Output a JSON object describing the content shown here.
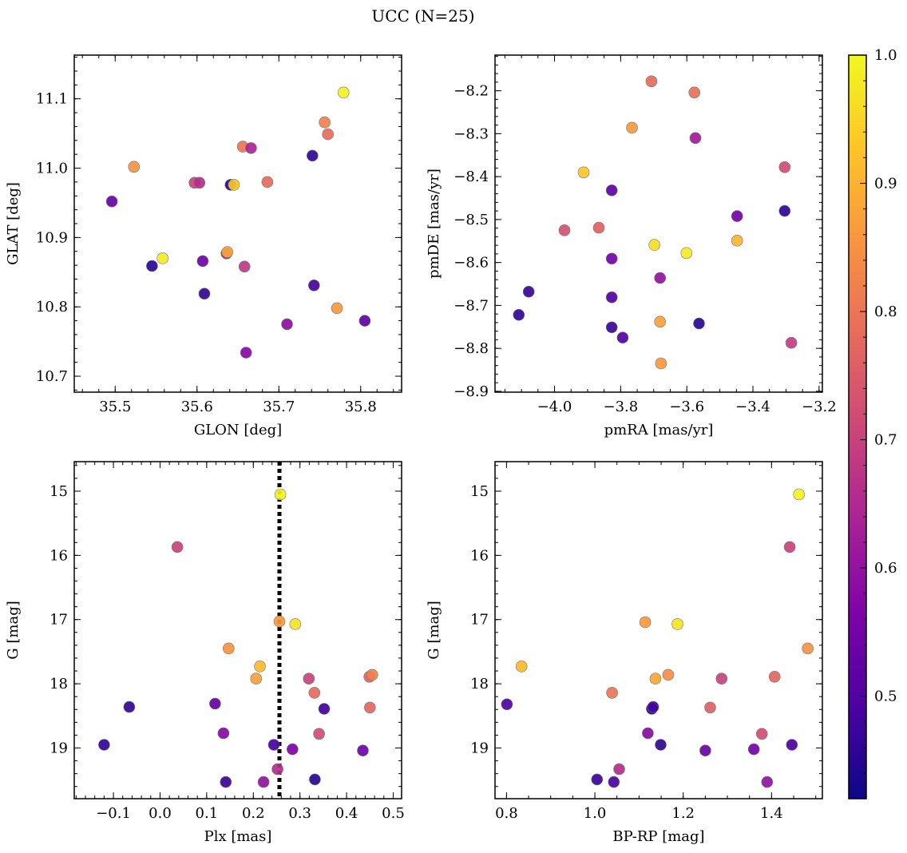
{
  "title": "UCC (N=25)",
  "colorbar": {
    "min": 0.42,
    "max": 1.0,
    "ticks": [
      0.5,
      0.6,
      0.7,
      0.8,
      0.9,
      1.0
    ],
    "tick_labels": [
      "0.5",
      "0.6",
      "0.7",
      "0.8",
      "0.9",
      "1.0"
    ],
    "colormap": "plasma"
  },
  "chart_data": [
    {
      "type": "scatter",
      "xlabel": "GLON [deg]",
      "ylabel": "GLAT [deg]",
      "xlim": [
        35.45,
        35.85
      ],
      "ylim": [
        10.677,
        11.163
      ],
      "invert_y": false,
      "xticks": [
        35.5,
        35.6,
        35.7,
        35.8
      ],
      "xtick_labels": [
        "35.5",
        "35.6",
        "35.7",
        "35.8"
      ],
      "yticks": [
        10.7,
        10.8,
        10.9,
        11.0,
        11.1
      ],
      "ytick_labels": [
        "10.7",
        "10.8",
        "10.9",
        "11.0",
        "11.1"
      ],
      "minor_x": 0.02,
      "minor_y": 0.02,
      "points": [
        {
          "x": 35.496,
          "y": 10.952,
          "c": 0.53
        },
        {
          "x": 35.523,
          "y": 11.002,
          "c": 0.85
        },
        {
          "x": 35.545,
          "y": 10.859,
          "c": 0.45
        },
        {
          "x": 35.558,
          "y": 10.87,
          "c": 0.98
        },
        {
          "x": 35.597,
          "y": 10.979,
          "c": 0.7
        },
        {
          "x": 35.603,
          "y": 10.979,
          "c": 0.66
        },
        {
          "x": 35.607,
          "y": 10.866,
          "c": 0.54
        },
        {
          "x": 35.609,
          "y": 10.819,
          "c": 0.46
        },
        {
          "x": 35.636,
          "y": 10.877,
          "c": 0.63
        },
        {
          "x": 35.637,
          "y": 10.879,
          "c": 0.88
        },
        {
          "x": 35.641,
          "y": 10.976,
          "c": 0.44
        },
        {
          "x": 35.645,
          "y": 10.976,
          "c": 0.93
        },
        {
          "x": 35.656,
          "y": 11.031,
          "c": 0.8
        },
        {
          "x": 35.658,
          "y": 10.858,
          "c": 0.68
        },
        {
          "x": 35.66,
          "y": 10.734,
          "c": 0.58
        },
        {
          "x": 35.666,
          "y": 11.029,
          "c": 0.64
        },
        {
          "x": 35.686,
          "y": 10.98,
          "c": 0.78
        },
        {
          "x": 35.71,
          "y": 10.775,
          "c": 0.59
        },
        {
          "x": 35.741,
          "y": 11.018,
          "c": 0.46
        },
        {
          "x": 35.743,
          "y": 10.831,
          "c": 0.49
        },
        {
          "x": 35.756,
          "y": 11.066,
          "c": 0.82
        },
        {
          "x": 35.76,
          "y": 11.049,
          "c": 0.78
        },
        {
          "x": 35.771,
          "y": 10.798,
          "c": 0.86
        },
        {
          "x": 35.779,
          "y": 11.109,
          "c": 0.99
        },
        {
          "x": 35.805,
          "y": 10.78,
          "c": 0.52
        }
      ]
    },
    {
      "type": "scatter",
      "xlabel": "pmRA [mas/yr]",
      "ylabel": "pmDE [mas/yr]",
      "xlim": [
        -4.18,
        -3.19
      ],
      "ylim": [
        -8.902,
        -8.117
      ],
      "invert_y": false,
      "xticks": [
        -4.0,
        -3.8,
        -3.6,
        -3.4,
        -3.2
      ],
      "xtick_labels": [
        "−4.0",
        "−3.8",
        "−3.6",
        "−3.4",
        "−3.2"
      ],
      "yticks": [
        -8.9,
        -8.8,
        -8.7,
        -8.6,
        -8.5,
        -8.4,
        -8.3,
        -8.2
      ],
      "ytick_labels": [
        "−8.9",
        "−8.8",
        "−8.7",
        "−8.6",
        "−8.5",
        "−8.4",
        "−8.3",
        "−8.2"
      ],
      "minor_x": 0.05,
      "minor_y": 0.02,
      "points": [
        {
          "x": -4.108,
          "y": -8.722,
          "c": 0.46
        },
        {
          "x": -4.078,
          "y": -8.668,
          "c": 0.47
        },
        {
          "x": -3.97,
          "y": -8.525,
          "c": 0.73
        },
        {
          "x": -3.912,
          "y": -8.39,
          "c": 0.93
        },
        {
          "x": -3.866,
          "y": -8.519,
          "c": 0.76
        },
        {
          "x": -3.827,
          "y": -8.432,
          "c": 0.52
        },
        {
          "x": -3.827,
          "y": -8.591,
          "c": 0.55
        },
        {
          "x": -3.827,
          "y": -8.681,
          "c": 0.5
        },
        {
          "x": -3.827,
          "y": -8.751,
          "c": 0.47
        },
        {
          "x": -3.794,
          "y": -8.775,
          "c": 0.5
        },
        {
          "x": -3.766,
          "y": -8.286,
          "c": 0.86
        },
        {
          "x": -3.707,
          "y": -8.178,
          "c": 0.78
        },
        {
          "x": -3.698,
          "y": -8.559,
          "c": 0.96
        },
        {
          "x": -3.681,
          "y": -8.636,
          "c": 0.6
        },
        {
          "x": -3.681,
          "y": -8.738,
          "c": 0.87
        },
        {
          "x": -3.678,
          "y": -8.835,
          "c": 0.86
        },
        {
          "x": -3.601,
          "y": -8.578,
          "c": 0.98
        },
        {
          "x": -3.577,
          "y": -8.204,
          "c": 0.79
        },
        {
          "x": -3.574,
          "y": -8.31,
          "c": 0.62
        },
        {
          "x": -3.563,
          "y": -8.742,
          "c": 0.45
        },
        {
          "x": -3.448,
          "y": -8.492,
          "c": 0.55
        },
        {
          "x": -3.448,
          "y": -8.549,
          "c": 0.9
        },
        {
          "x": -3.304,
          "y": -8.378,
          "c": 0.72
        },
        {
          "x": -3.304,
          "y": -8.48,
          "c": 0.46
        },
        {
          "x": -3.284,
          "y": -8.787,
          "c": 0.69
        }
      ]
    },
    {
      "type": "scatter",
      "xlabel": "Plx [mas]",
      "ylabel": "G [mag]",
      "xlim": [
        -0.184,
        0.518
      ],
      "ylim": [
        19.79,
        14.54
      ],
      "invert_y": true,
      "xticks": [
        -0.1,
        0.0,
        0.1,
        0.2,
        0.3,
        0.4,
        0.5
      ],
      "xtick_labels": [
        "−0.1",
        "0.0",
        "0.1",
        "0.2",
        "0.3",
        "0.4",
        "0.5"
      ],
      "yticks": [
        15,
        16,
        17,
        18,
        19
      ],
      "ytick_labels": [
        "15",
        "16",
        "17",
        "18",
        "19"
      ],
      "minor_x": 0.02,
      "minor_y": 0.2,
      "vline": 0.256,
      "points": [
        {
          "x": -0.12,
          "y": 18.95,
          "c": 0.46
        },
        {
          "x": -0.066,
          "y": 18.36,
          "c": 0.46
        },
        {
          "x": 0.037,
          "y": 15.87,
          "c": 0.7
        },
        {
          "x": 0.118,
          "y": 18.31,
          "c": 0.53
        },
        {
          "x": 0.136,
          "y": 18.77,
          "c": 0.58
        },
        {
          "x": 0.141,
          "y": 19.53,
          "c": 0.47
        },
        {
          "x": 0.147,
          "y": 17.45,
          "c": 0.85
        },
        {
          "x": 0.206,
          "y": 17.92,
          "c": 0.87
        },
        {
          "x": 0.214,
          "y": 17.73,
          "c": 0.91
        },
        {
          "x": 0.222,
          "y": 19.53,
          "c": 0.6
        },
        {
          "x": 0.244,
          "y": 18.95,
          "c": 0.49
        },
        {
          "x": 0.252,
          "y": 19.33,
          "c": 0.66
        },
        {
          "x": 0.256,
          "y": 17.03,
          "c": 0.86
        },
        {
          "x": 0.258,
          "y": 15.05,
          "c": 0.99
        },
        {
          "x": 0.284,
          "y": 19.02,
          "c": 0.56
        },
        {
          "x": 0.29,
          "y": 17.07,
          "c": 0.97
        },
        {
          "x": 0.319,
          "y": 17.92,
          "c": 0.7
        },
        {
          "x": 0.331,
          "y": 18.14,
          "c": 0.78
        },
        {
          "x": 0.332,
          "y": 19.49,
          "c": 0.45
        },
        {
          "x": 0.341,
          "y": 18.78,
          "c": 0.72
        },
        {
          "x": 0.352,
          "y": 18.39,
          "c": 0.48
        },
        {
          "x": 0.435,
          "y": 19.04,
          "c": 0.54
        },
        {
          "x": 0.449,
          "y": 17.89,
          "c": 0.76
        },
        {
          "x": 0.45,
          "y": 18.37,
          "c": 0.77
        },
        {
          "x": 0.455,
          "y": 17.86,
          "c": 0.82
        }
      ]
    },
    {
      "type": "scatter",
      "xlabel": "BP-RP [mag]",
      "ylabel": "G [mag]",
      "xlim": [
        0.774,
        1.515
      ],
      "ylim": [
        19.79,
        14.54
      ],
      "invert_y": true,
      "xticks": [
        0.8,
        1.0,
        1.2,
        1.4
      ],
      "xtick_labels": [
        "0.8",
        "1.0",
        "1.2",
        "1.4"
      ],
      "yticks": [
        15,
        16,
        17,
        18,
        19
      ],
      "ytick_labels": [
        "15",
        "16",
        "17",
        "18",
        "19"
      ],
      "minor_x": 0.05,
      "minor_y": 0.2,
      "points": [
        {
          "x": 0.801,
          "y": 18.32,
          "c": 0.5
        },
        {
          "x": 0.834,
          "y": 17.73,
          "c": 0.91
        },
        {
          "x": 1.005,
          "y": 19.49,
          "c": 0.47
        },
        {
          "x": 1.039,
          "y": 18.14,
          "c": 0.8
        },
        {
          "x": 1.043,
          "y": 19.53,
          "c": 0.49
        },
        {
          "x": 1.055,
          "y": 19.33,
          "c": 0.66
        },
        {
          "x": 1.114,
          "y": 17.04,
          "c": 0.86
        },
        {
          "x": 1.12,
          "y": 18.77,
          "c": 0.58
        },
        {
          "x": 1.129,
          "y": 18.39,
          "c": 0.44
        },
        {
          "x": 1.132,
          "y": 18.36,
          "c": 0.48
        },
        {
          "x": 1.137,
          "y": 17.92,
          "c": 0.88
        },
        {
          "x": 1.149,
          "y": 18.95,
          "c": 0.46
        },
        {
          "x": 1.166,
          "y": 17.86,
          "c": 0.84
        },
        {
          "x": 1.187,
          "y": 17.07,
          "c": 0.97
        },
        {
          "x": 1.25,
          "y": 19.04,
          "c": 0.54
        },
        {
          "x": 1.261,
          "y": 18.37,
          "c": 0.76
        },
        {
          "x": 1.287,
          "y": 17.92,
          "c": 0.7
        },
        {
          "x": 1.36,
          "y": 19.02,
          "c": 0.55
        },
        {
          "x": 1.378,
          "y": 18.78,
          "c": 0.72
        },
        {
          "x": 1.39,
          "y": 19.53,
          "c": 0.6
        },
        {
          "x": 1.407,
          "y": 17.89,
          "c": 0.77
        },
        {
          "x": 1.441,
          "y": 15.87,
          "c": 0.7
        },
        {
          "x": 1.446,
          "y": 18.95,
          "c": 0.49
        },
        {
          "x": 1.462,
          "y": 15.05,
          "c": 0.99
        },
        {
          "x": 1.482,
          "y": 17.45,
          "c": 0.85
        }
      ]
    }
  ]
}
